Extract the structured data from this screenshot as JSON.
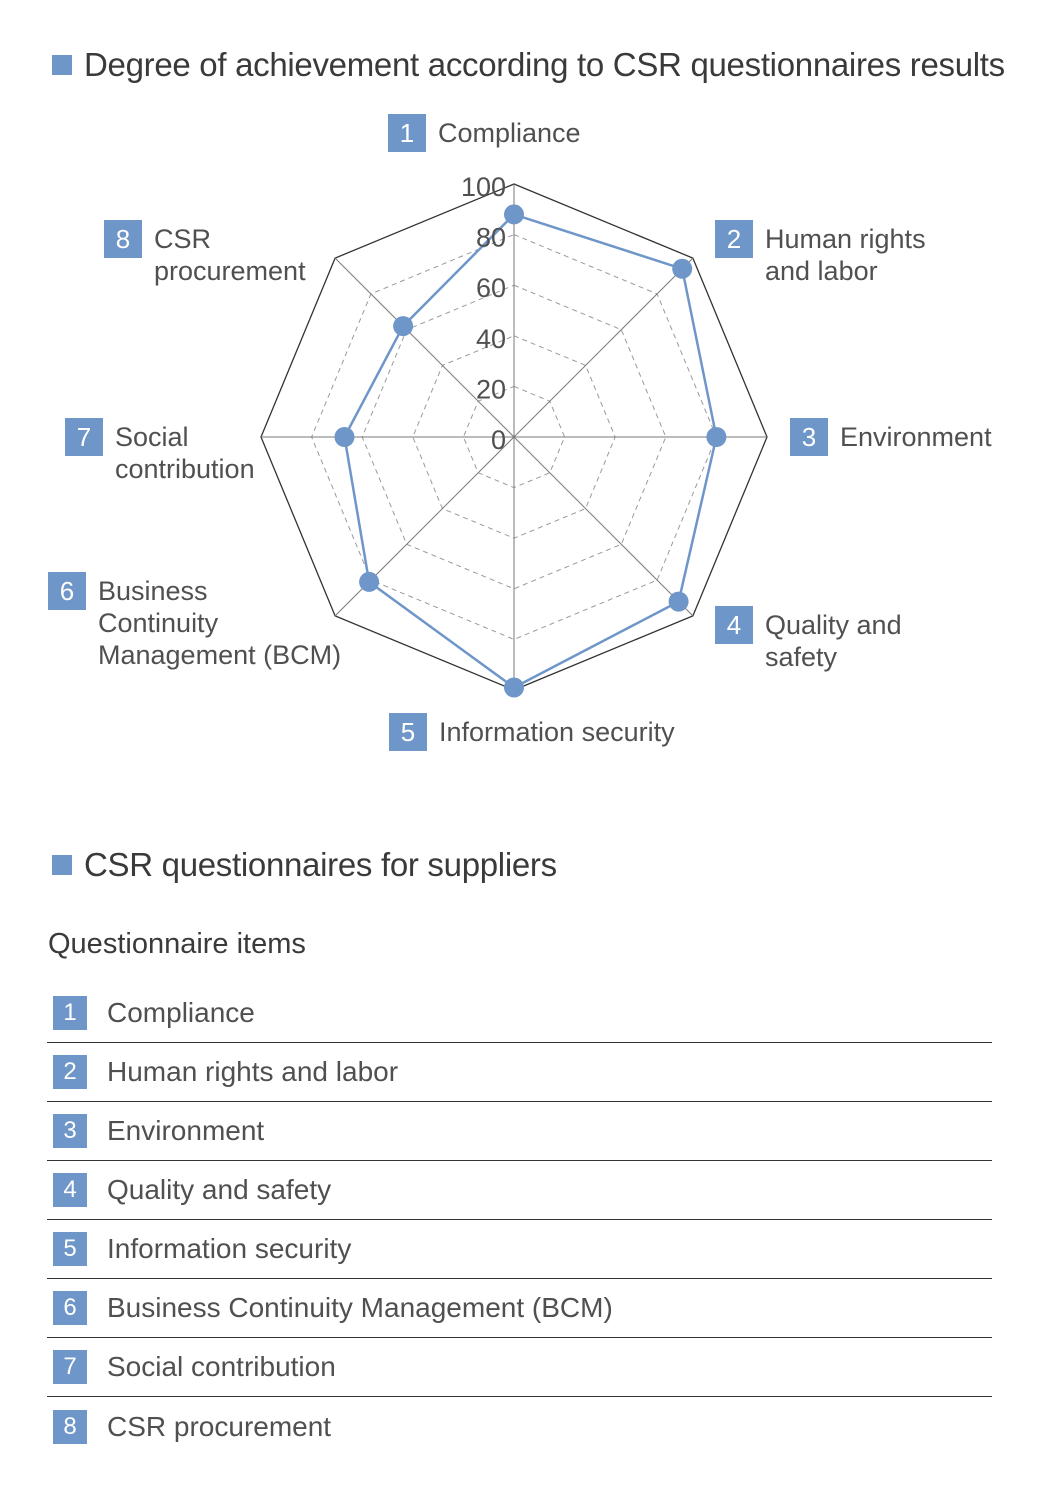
{
  "section1_title": "Degree of achievement according to CSR questionnaires results",
  "section2_title": "CSR questionnaires for suppliers",
  "items_heading": "Questionnaire items",
  "colors": {
    "accent": "#6f96c9",
    "series": "#6f96c9",
    "grid": "#9a9a9a",
    "outline": "#333333"
  },
  "chart_data": {
    "type": "radar",
    "title": "Degree of achievement according to CSR questionnaires results",
    "axes": [
      {
        "num": "1",
        "label": "Compliance"
      },
      {
        "num": "2",
        "label": "Human rights\nand labor"
      },
      {
        "num": "3",
        "label": "Environment"
      },
      {
        "num": "4",
        "label": "Quality and\nsafety"
      },
      {
        "num": "5",
        "label": "Information security"
      },
      {
        "num": "6",
        "label": "Business\nContinuity\nManagement (BCM)"
      },
      {
        "num": "7",
        "label": "Social\ncontribution"
      },
      {
        "num": "8",
        "label": "CSR\nprocurement"
      }
    ],
    "series": [
      {
        "name": "Degree of achievement",
        "values": [
          88,
          94,
          80,
          92,
          99,
          81,
          67,
          62
        ]
      }
    ],
    "range": [
      0,
      100
    ],
    "ticks": [
      "0",
      "20",
      "40",
      "60",
      "80",
      "100"
    ]
  },
  "items": [
    {
      "num": "1",
      "label": "Compliance"
    },
    {
      "num": "2",
      "label": "Human rights and labor"
    },
    {
      "num": "3",
      "label": "Environment"
    },
    {
      "num": "4",
      "label": "Quality and safety"
    },
    {
      "num": "5",
      "label": "Information security"
    },
    {
      "num": "6",
      "label": "Business Continuity Management (BCM)"
    },
    {
      "num": "7",
      "label": "Social contribution"
    },
    {
      "num": "8",
      "label": "CSR procurement"
    }
  ]
}
